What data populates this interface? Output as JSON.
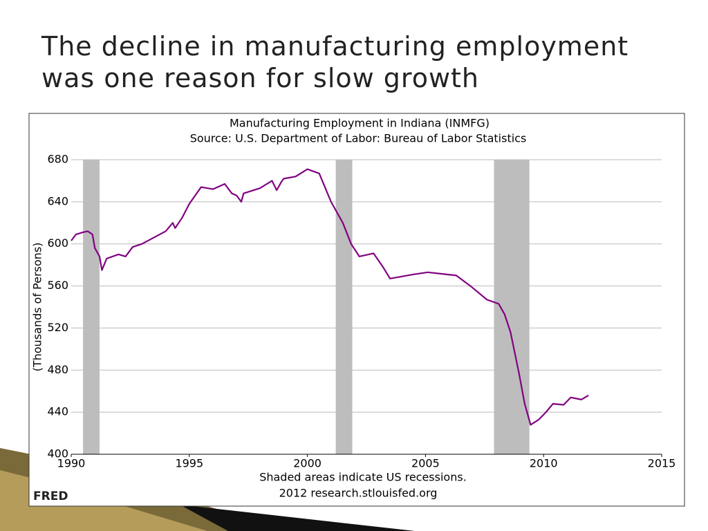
{
  "slide": {
    "title_lines": [
      "The decline in manufacturing employment",
      "was one reason for slow growth"
    ]
  },
  "chart_data": {
    "type": "line",
    "title": "Manufacturing Employment in Indiana (INMFG)",
    "subtitle": "Source: U.S. Department of Labor: Bureau of Labor Statistics",
    "y_label": "(Thousands of Persons)",
    "notes": [
      "Shaded areas indicate US recessions.",
      "2012 research.stlouisfed.org"
    ],
    "logo": "FRED",
    "color": "#800080",
    "recession_color": "#bdbdbd",
    "recessions": [
      [
        1990.5,
        1991.2
      ],
      [
        2001.2,
        2001.9
      ],
      [
        2007.9,
        2009.4
      ]
    ],
    "xlim": [
      1990,
      2015
    ],
    "xticks": [
      1990,
      1995,
      2000,
      2005,
      2010,
      2015
    ],
    "ylim": [
      400,
      680
    ],
    "yticks": [
      400,
      440,
      480,
      520,
      560,
      600,
      640,
      680
    ],
    "grid": true,
    "x": [
      1990.0,
      1990.2,
      1990.5,
      1990.7,
      1990.9,
      1991.0,
      1991.2,
      1991.3,
      1991.5,
      1992.0,
      1992.3,
      1992.6,
      1993.0,
      1993.5,
      1994.0,
      1994.3,
      1994.4,
      1994.7,
      1995.0,
      1995.5,
      1996.0,
      1996.5,
      1996.8,
      1997.0,
      1997.2,
      1997.3,
      1998.0,
      1998.5,
      1998.7,
      1998.9,
      1999.0,
      1999.5,
      2000.0,
      2000.5,
      2001.0,
      2001.5,
      2001.85,
      2002.2,
      2002.8,
      2003.2,
      2003.5,
      2004.5,
      2005.1,
      2006.3,
      2006.9,
      2007.6,
      2008.1,
      2008.35,
      2008.6,
      2008.95,
      2009.2,
      2009.45,
      2009.8,
      2010.1,
      2010.4,
      2010.85,
      2011.15,
      2011.6,
      2011.9
    ],
    "values": [
      603,
      609,
      611,
      612,
      609,
      596,
      588,
      575,
      586,
      590,
      588,
      597,
      600,
      606,
      612,
      620,
      615,
      625,
      638,
      654,
      652,
      657,
      648,
      646,
      640,
      648,
      653,
      660,
      651,
      659,
      662,
      664,
      671,
      667,
      640,
      620,
      600,
      588,
      591,
      578,
      567,
      571,
      573,
      570,
      560,
      547,
      543,
      533,
      516,
      478,
      448,
      428,
      433,
      440,
      448,
      447,
      454,
      452,
      456
    ]
  }
}
